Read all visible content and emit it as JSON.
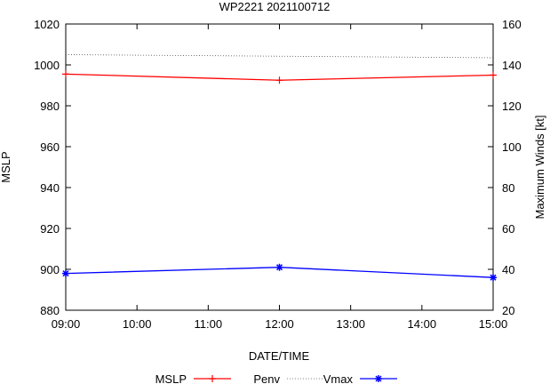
{
  "chart_data": {
    "type": "line",
    "title": "WP2221 2021100712",
    "xlabel": "DATE/TIME",
    "ylabel": "MSLP",
    "y2label": "Maximum Winds [kt]",
    "x_ticks": [
      "09:00",
      "10:00",
      "11:00",
      "12:00",
      "13:00",
      "14:00",
      "15:00"
    ],
    "x_range": [
      "09:00",
      "15:00"
    ],
    "ylim": [
      880,
      1020
    ],
    "y_ticks": [
      880,
      900,
      920,
      940,
      960,
      980,
      1000,
      1020
    ],
    "y2lim": [
      20,
      160
    ],
    "y2_ticks": [
      20,
      40,
      60,
      80,
      100,
      120,
      140,
      160
    ],
    "grid": false,
    "legend_position": "bottom",
    "series": [
      {
        "name": "MSLP",
        "axis": "left",
        "color": "#ff0000",
        "marker": "plus",
        "x": [
          "09:00",
          "12:00",
          "15:00"
        ],
        "values": [
          995.5,
          992.5,
          995
        ]
      },
      {
        "name": "Penv",
        "axis": "left",
        "color": "#555555",
        "marker": "none",
        "dash": "dotted",
        "x": [
          "09:00",
          "15:00"
        ],
        "values": [
          1005,
          1003.5
        ]
      },
      {
        "name": "Vmax",
        "axis": "right",
        "color": "#0000ff",
        "marker": "star",
        "x": [
          "09:00",
          "12:00",
          "15:00"
        ],
        "values": [
          38,
          41,
          36
        ]
      }
    ]
  }
}
